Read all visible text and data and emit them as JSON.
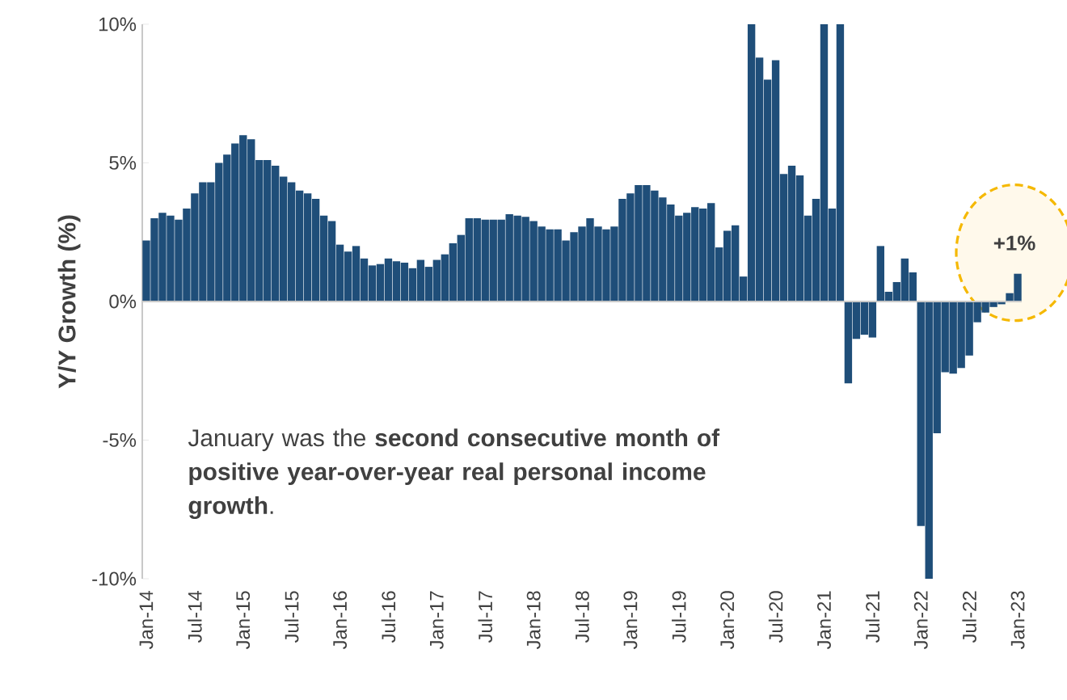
{
  "chart_data": {
    "type": "bar",
    "ylabel": "Y/Y Growth (%)",
    "categories": [
      "Jan-14",
      null,
      null,
      null,
      null,
      null,
      "Jul-14",
      null,
      null,
      null,
      null,
      null,
      "Jan-15",
      null,
      null,
      null,
      null,
      null,
      "Jul-15",
      null,
      null,
      null,
      null,
      null,
      "Jan-16",
      null,
      null,
      null,
      null,
      null,
      "Jul-16",
      null,
      null,
      null,
      null,
      null,
      "Jan-17",
      null,
      null,
      null,
      null,
      null,
      "Jul-17",
      null,
      null,
      null,
      null,
      null,
      "Jan-18",
      null,
      null,
      null,
      null,
      null,
      "Jul-18",
      null,
      null,
      null,
      null,
      null,
      "Jan-19",
      null,
      null,
      null,
      null,
      null,
      "Jul-19",
      null,
      null,
      null,
      null,
      null,
      "Jan-20",
      null,
      null,
      null,
      null,
      null,
      "Jul-20",
      null,
      null,
      null,
      null,
      null,
      "Jan-21",
      null,
      null,
      null,
      null,
      null,
      "Jul-21",
      null,
      null,
      null,
      null,
      null,
      "Jan-22",
      null,
      null,
      null,
      null,
      null,
      "Jul-22",
      null,
      null,
      null,
      null,
      null,
      "Jan-23"
    ],
    "values": [
      2.2,
      3.0,
      3.2,
      3.1,
      2.95,
      3.35,
      3.9,
      4.3,
      4.3,
      5.0,
      5.3,
      5.7,
      6.0,
      5.85,
      5.1,
      5.1,
      4.9,
      4.5,
      4.3,
      4.0,
      3.9,
      3.7,
      3.1,
      2.9,
      2.05,
      1.8,
      2.0,
      1.55,
      1.3,
      1.35,
      1.55,
      1.45,
      1.4,
      1.2,
      1.5,
      1.25,
      1.5,
      1.7,
      2.1,
      2.4,
      3.0,
      3.0,
      2.95,
      2.95,
      2.95,
      3.15,
      3.1,
      3.05,
      2.9,
      2.7,
      2.6,
      2.6,
      2.2,
      2.5,
      2.7,
      3.0,
      2.7,
      2.6,
      2.7,
      3.7,
      3.9,
      4.2,
      4.2,
      4.0,
      3.75,
      3.5,
      3.1,
      3.2,
      3.4,
      3.35,
      3.55,
      1.95,
      2.55,
      2.75,
      0.9,
      10,
      8.8,
      8.0,
      8.7,
      4.6,
      4.9,
      4.55,
      3.1,
      3.7,
      10,
      3.35,
      10,
      -2.95,
      -1.35,
      -1.2,
      -1.3,
      2.0,
      0.35,
      0.7,
      1.55,
      1.05,
      -8.1,
      -10,
      -4.75,
      -2.55,
      -2.6,
      -2.4,
      -1.95,
      -0.75,
      -0.4,
      -0.2,
      -0.1,
      0.3,
      1.0
    ],
    "color": "#1f4e79",
    "ylim": [
      -10,
      10
    ],
    "yticks": [
      {
        "value": -10,
        "label": "-10%"
      },
      {
        "value": -5,
        "label": "-5%"
      },
      {
        "value": 0,
        "label": "0%"
      },
      {
        "value": 5,
        "label": "5%"
      },
      {
        "value": 10,
        "label": "10%"
      }
    ],
    "annotations": [
      "January was the **second consecutive month of positive year-over-year real personal income growth**.",
      "+1%"
    ]
  }
}
